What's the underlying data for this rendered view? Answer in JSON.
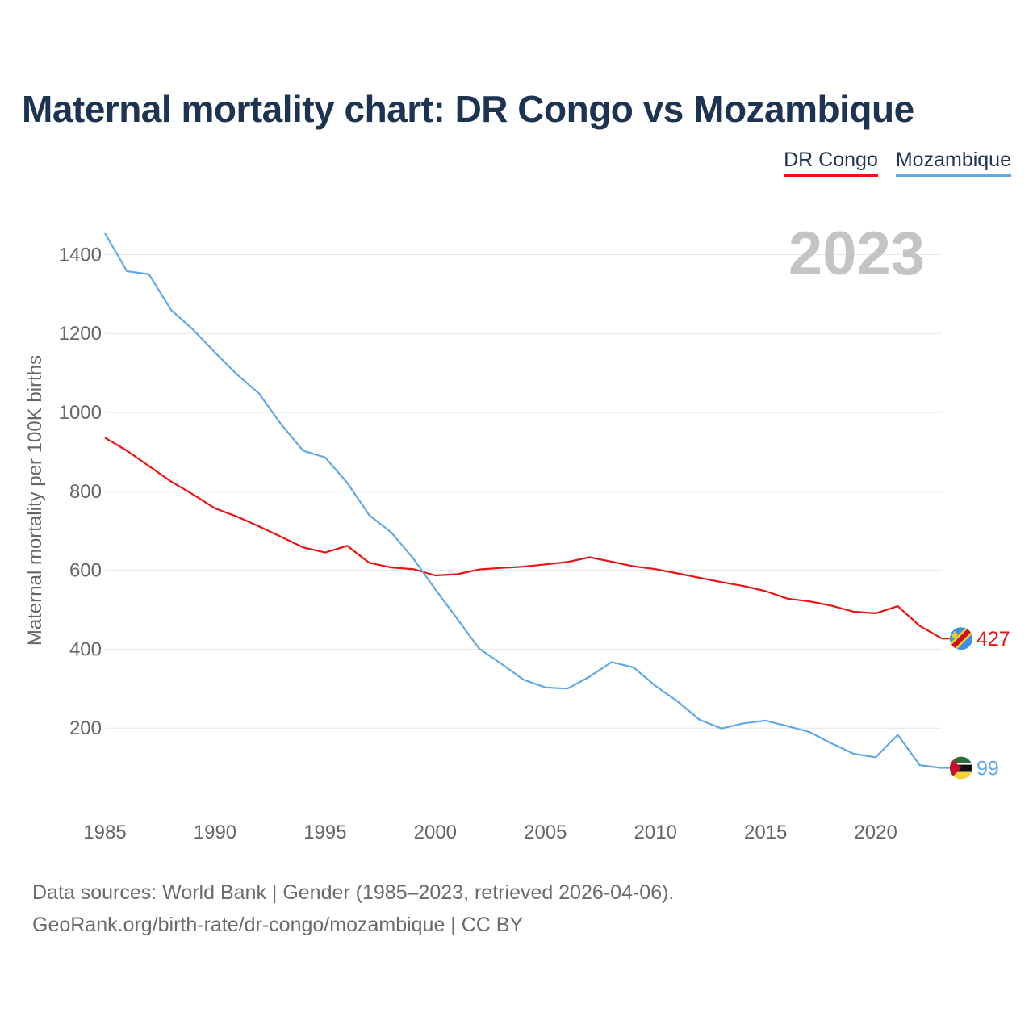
{
  "title": "Maternal mortality chart: DR Congo vs Mozambique",
  "legend": [
    {
      "name": "DR Congo",
      "color": "#ee1111"
    },
    {
      "name": "Mozambique",
      "color": "#5ea8ea"
    }
  ],
  "footer": {
    "line1": "Data sources: World Bank | Gender (1985–2023, retrieved 2026-04-06).",
    "line2": "GeoRank.org/birth-rate/dr-congo/mozambique | CC BY"
  },
  "chart_data": {
    "type": "line",
    "title": "Maternal mortality chart: DR Congo vs Mozambique",
    "xlabel": "",
    "ylabel": "Maternal mortality per 100K births",
    "year_label": "2023",
    "x": [
      1985,
      1986,
      1987,
      1988,
      1989,
      1990,
      1991,
      1992,
      1993,
      1994,
      1995,
      1996,
      1997,
      1998,
      1999,
      2000,
      2001,
      2002,
      2003,
      2004,
      2005,
      2006,
      2007,
      2008,
      2009,
      2010,
      2011,
      2012,
      2013,
      2014,
      2015,
      2016,
      2017,
      2018,
      2019,
      2020,
      2021,
      2022,
      2023
    ],
    "xlim": [
      1985,
      2023
    ],
    "ylim": [
      0,
      1450
    ],
    "xticks": [
      1985,
      1990,
      1995,
      2000,
      2005,
      2010,
      2015,
      2020
    ],
    "yticks": [
      200,
      400,
      600,
      800,
      1000,
      1200,
      1400
    ],
    "series": [
      {
        "name": "DR Congo",
        "color": "#ee1111",
        "end_label": "427",
        "values": [
          936,
          903,
          864,
          825,
          792,
          757,
          736,
          711,
          685,
          658,
          645,
          662,
          619,
          607,
          603,
          587,
          590,
          602,
          606,
          609,
          615,
          621,
          633,
          622,
          610,
          603,
          592,
          581,
          570,
          560,
          547,
          528,
          521,
          510,
          495,
          491,
          509,
          459,
          427
        ]
      },
      {
        "name": "Mozambique",
        "color": "#5ea8ea",
        "end_label": "99",
        "values": [
          1454,
          1358,
          1350,
          1260,
          1210,
          1152,
          1096,
          1048,
          970,
          903,
          886,
          822,
          740,
          696,
          630,
          552,
          477,
          401,
          363,
          323,
          303,
          300,
          330,
          367,
          354,
          307,
          268,
          221,
          199,
          212,
          219,
          205,
          190,
          161,
          135,
          126,
          183,
          106,
          99
        ]
      }
    ]
  }
}
